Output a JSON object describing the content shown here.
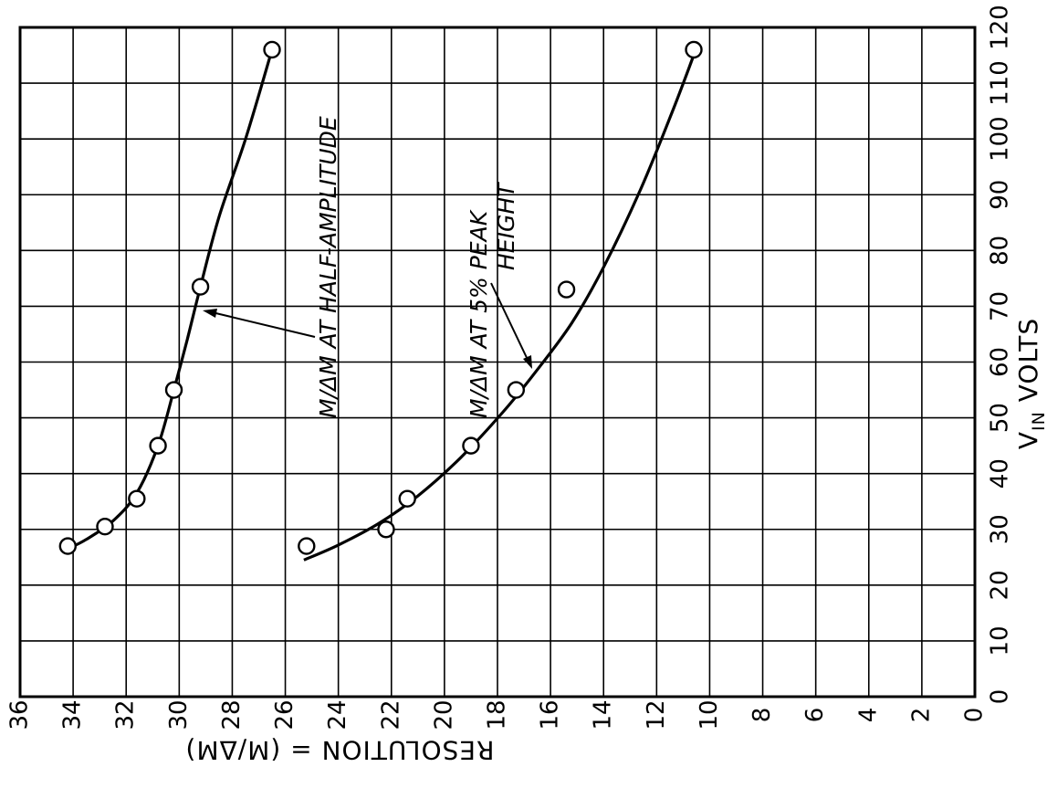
{
  "chart_data": {
    "type": "scatter",
    "title": "",
    "xlabel": "RESOLUTION = (M/ΔM)",
    "ylabel_main": "V",
    "ylabel_sub": "IN",
    "ylabel_rest": " VOLTS",
    "xlim": [
      0,
      36
    ],
    "ylim": [
      0,
      120
    ],
    "x_axis_reversed": true,
    "x_ticks": [
      0,
      2,
      4,
      6,
      8,
      10,
      12,
      14,
      16,
      18,
      20,
      22,
      24,
      26,
      28,
      30,
      32,
      34,
      36
    ],
    "y_ticks": [
      0,
      10,
      20,
      30,
      40,
      50,
      60,
      70,
      80,
      90,
      100,
      110,
      120
    ],
    "grid": true,
    "series": [
      {
        "name": "M/ΔM AT HALF-AMPLITUDE",
        "points": [
          [
            34.2,
            27
          ],
          [
            32.8,
            30.5
          ],
          [
            31.6,
            35.5
          ],
          [
            30.8,
            45
          ],
          [
            30.2,
            55
          ],
          [
            29.2,
            73.5
          ],
          [
            26.5,
            116
          ]
        ],
        "curve": [
          [
            34.2,
            26.5
          ],
          [
            33.5,
            28.2
          ],
          [
            32.5,
            31.5
          ],
          [
            31.6,
            36.5
          ],
          [
            30.8,
            45
          ],
          [
            30.2,
            55
          ],
          [
            29.7,
            64
          ],
          [
            29.2,
            73.5
          ],
          [
            28.5,
            86
          ],
          [
            27.5,
            100
          ],
          [
            26.5,
            116
          ]
        ]
      },
      {
        "name": "M/ΔM AT 5% PEAK HEIGHT",
        "points": [
          [
            25.2,
            27
          ],
          [
            22.2,
            30
          ],
          [
            21.4,
            35.5
          ],
          [
            19.0,
            45
          ],
          [
            17.3,
            55
          ],
          [
            15.4,
            73
          ],
          [
            10.6,
            116
          ]
        ],
        "curve": [
          [
            25.3,
            24.5
          ],
          [
            24.0,
            27.2
          ],
          [
            22.5,
            31
          ],
          [
            21.0,
            36
          ],
          [
            19.4,
            42.8
          ],
          [
            17.8,
            51
          ],
          [
            16.6,
            58
          ],
          [
            15.2,
            67
          ],
          [
            14.0,
            77
          ],
          [
            12.6,
            91
          ],
          [
            11.4,
            105
          ],
          [
            10.6,
            115
          ]
        ]
      }
    ],
    "annotations": [
      {
        "text": "M/ΔM  AT HALF-AMPLITUDE"
      },
      {
        "text": "M/ΔM  AT 5% PEAK"
      },
      {
        "text": "HEIGHT"
      }
    ]
  }
}
